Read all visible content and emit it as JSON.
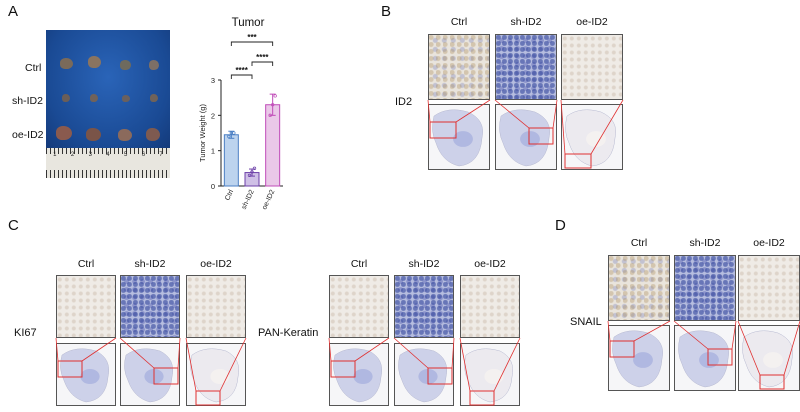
{
  "panel_labels": {
    "a": "A",
    "b": "B",
    "c": "C",
    "d": "D"
  },
  "groups": [
    "Ctrl",
    "sh-ID2",
    "oe-ID2"
  ],
  "panel_a": {
    "row_labels": [
      "Ctrl",
      "sh-ID2",
      "oe-ID2"
    ],
    "ruler_numbers": [
      "1",
      "2",
      "3",
      "4",
      "5",
      "6",
      "7"
    ]
  },
  "chart_data": {
    "type": "bar",
    "title": "Tumor",
    "categories": [
      "Ctrl",
      "sh-ID2",
      "oe-ID2"
    ],
    "values": [
      1.45,
      0.38,
      2.3
    ],
    "errors": [
      0.1,
      0.1,
      0.3
    ],
    "points": [
      [
        1.4,
        1.5,
        1.5
      ],
      [
        0.3,
        0.4,
        0.5
      ],
      [
        2.0,
        2.3,
        2.55
      ]
    ],
    "ylabel": "Tumor Weight (g)",
    "ylim": [
      0,
      3
    ],
    "yticks": [
      "0",
      "1",
      "2",
      "3"
    ],
    "colors": {
      "Ctrl": "#bcd3ee",
      "sh-ID2": "#cfc0e6",
      "oe-ID2": "#eac8e8",
      "Ctrl_edge": "#4b7fc4",
      "sh-ID2_edge": "#6c3fa8",
      "oe-ID2_edge": "#c04bb8"
    },
    "significance": [
      {
        "pair": [
          "Ctrl",
          "oe-ID2"
        ],
        "label": "***"
      },
      {
        "pair": [
          "Ctrl",
          "sh-ID2"
        ],
        "label": "****"
      },
      {
        "pair": [
          "sh-ID2",
          "oe-ID2"
        ],
        "label": "****"
      }
    ]
  },
  "stain_labels": {
    "b": "ID2",
    "c_left": "KI67",
    "c_right": "PAN-Keratin",
    "d": "SNAIL"
  }
}
